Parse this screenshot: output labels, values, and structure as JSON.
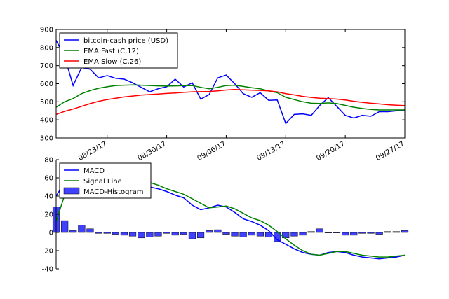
{
  "chart_data": [
    {
      "type": "line",
      "x_tick_labels": [
        "08/23/17",
        "08/30/17",
        "09/06/17",
        "09/13/17",
        "09/20/17",
        "09/27/17"
      ],
      "x_tick_days": [
        6,
        13,
        20,
        27,
        34,
        41
      ],
      "ylim": [
        300,
        900
      ],
      "yticks": [
        300,
        400,
        500,
        600,
        700,
        800,
        900
      ],
      "legend_position": "upper-left",
      "series": [
        {
          "name": "bitcoin-cash price (USD)",
          "color": "#0000ff",
          "days": [
            0,
            1,
            2,
            3,
            4,
            5,
            6,
            7,
            8,
            9,
            10,
            11,
            12,
            13,
            14,
            15,
            16,
            17,
            18,
            19,
            20,
            21,
            22,
            23,
            24,
            25,
            26,
            27,
            28,
            29,
            30,
            31,
            32,
            33,
            34,
            35,
            36,
            37,
            38,
            39,
            40,
            41
          ],
          "values": [
            840,
            750,
            590,
            690,
            680,
            632,
            645,
            630,
            625,
            605,
            580,
            555,
            572,
            583,
            625,
            582,
            605,
            515,
            540,
            632,
            648,
            600,
            545,
            525,
            550,
            508,
            510,
            380,
            430,
            433,
            425,
            480,
            523,
            475,
            425,
            410,
            425,
            420,
            445,
            445,
            450,
            455
          ]
        },
        {
          "name": "EMA Fast (C,12)",
          "color": "#008000",
          "days": [
            0,
            1,
            2,
            3,
            4,
            5,
            6,
            7,
            8,
            9,
            10,
            11,
            12,
            13,
            14,
            15,
            16,
            17,
            18,
            19,
            20,
            21,
            22,
            23,
            24,
            25,
            26,
            27,
            28,
            29,
            30,
            31,
            32,
            33,
            34,
            35,
            36,
            37,
            38,
            39,
            40,
            41
          ],
          "values": [
            470,
            500,
            518,
            545,
            562,
            575,
            583,
            590,
            592,
            593,
            592,
            590,
            588,
            587,
            588,
            589,
            590,
            580,
            572,
            580,
            590,
            592,
            585,
            578,
            572,
            560,
            550,
            525,
            512,
            500,
            492,
            491,
            494,
            490,
            480,
            470,
            463,
            458,
            455,
            455,
            455,
            455
          ]
        },
        {
          "name": "EMA Slow (C,26)",
          "color": "#ff0000",
          "days": [
            0,
            1,
            2,
            3,
            4,
            5,
            6,
            7,
            8,
            9,
            10,
            11,
            12,
            13,
            14,
            15,
            16,
            17,
            18,
            19,
            20,
            21,
            22,
            23,
            24,
            25,
            26,
            27,
            28,
            29,
            30,
            31,
            32,
            33,
            34,
            35,
            36,
            37,
            38,
            39,
            40,
            41
          ],
          "values": [
            430,
            447,
            460,
            475,
            490,
            503,
            512,
            520,
            527,
            532,
            537,
            540,
            543,
            546,
            549,
            552,
            555,
            556,
            557,
            560,
            565,
            568,
            566,
            564,
            563,
            560,
            555,
            545,
            538,
            530,
            524,
            520,
            518,
            515,
            510,
            503,
            497,
            492,
            488,
            484,
            481,
            479
          ]
        }
      ]
    },
    {
      "type": "line",
      "x_tick_days": [
        6,
        13,
        20,
        27,
        34,
        41
      ],
      "ylim": [
        -40,
        80
      ],
      "yticks": [
        -40,
        -20,
        0,
        20,
        40,
        60,
        80
      ],
      "legend_position": "upper-left",
      "series": [
        {
          "name": "MACD",
          "color": "#0000ff",
          "days": [
            0,
            1,
            2,
            3,
            4,
            5,
            6,
            7,
            8,
            9,
            10,
            11,
            12,
            13,
            14,
            15,
            16,
            17,
            18,
            19,
            20,
            21,
            22,
            23,
            24,
            25,
            26,
            27,
            28,
            29,
            30,
            31,
            32,
            33,
            34,
            35,
            36,
            37,
            38,
            39,
            40,
            41
          ],
          "values": [
            40,
            55,
            66,
            75,
            75,
            74,
            73,
            69,
            64,
            60,
            55,
            50,
            48,
            45,
            41,
            38,
            30,
            25,
            27,
            30,
            28,
            22,
            15,
            12,
            8,
            2,
            -8,
            -13,
            -18,
            -22,
            -24,
            -25,
            -22,
            -21,
            -22,
            -25,
            -27,
            -28,
            -29,
            -28,
            -27,
            -25
          ]
        },
        {
          "name": "Signal Line",
          "color": "#008000",
          "days": [
            0,
            1,
            2,
            3,
            4,
            5,
            6,
            7,
            8,
            9,
            10,
            11,
            12,
            13,
            14,
            15,
            16,
            17,
            18,
            19,
            20,
            21,
            22,
            23,
            24,
            25,
            26,
            27,
            28,
            29,
            30,
            31,
            32,
            33,
            34,
            35,
            36,
            37,
            38,
            39,
            40,
            41
          ],
          "values": [
            12,
            41,
            63,
            73,
            71,
            75,
            75,
            71,
            67,
            64,
            60,
            55,
            52,
            48,
            45,
            42,
            37,
            32,
            27,
            28,
            29,
            26,
            21,
            16,
            13,
            8,
            1,
            -7,
            -14,
            -20,
            -24,
            -25,
            -23,
            -21,
            -21,
            -23,
            -25,
            -26,
            -27,
            -27,
            -26,
            -25
          ]
        }
      ],
      "histogram": {
        "name": "MACD-Histogram",
        "color": "#0000ff",
        "days": [
          0,
          1,
          2,
          3,
          4,
          5,
          6,
          7,
          8,
          9,
          10,
          11,
          12,
          13,
          14,
          15,
          16,
          17,
          18,
          19,
          20,
          21,
          22,
          23,
          24,
          25,
          26,
          27,
          28,
          29,
          30,
          31,
          32,
          33,
          34,
          35,
          36,
          37,
          38,
          39,
          40,
          41
        ],
        "values": [
          28,
          13,
          2,
          8,
          4,
          -1,
          -1,
          -2,
          -3,
          -4,
          -6,
          -5,
          -4,
          -1,
          -3,
          -2,
          -7,
          -6,
          2,
          3,
          -2,
          -4,
          -5,
          -3,
          -4,
          -5,
          -10,
          -6,
          -4,
          -3,
          1,
          4,
          0,
          0,
          -3,
          -3,
          -1,
          -1,
          -2,
          1,
          1,
          2
        ]
      }
    }
  ]
}
